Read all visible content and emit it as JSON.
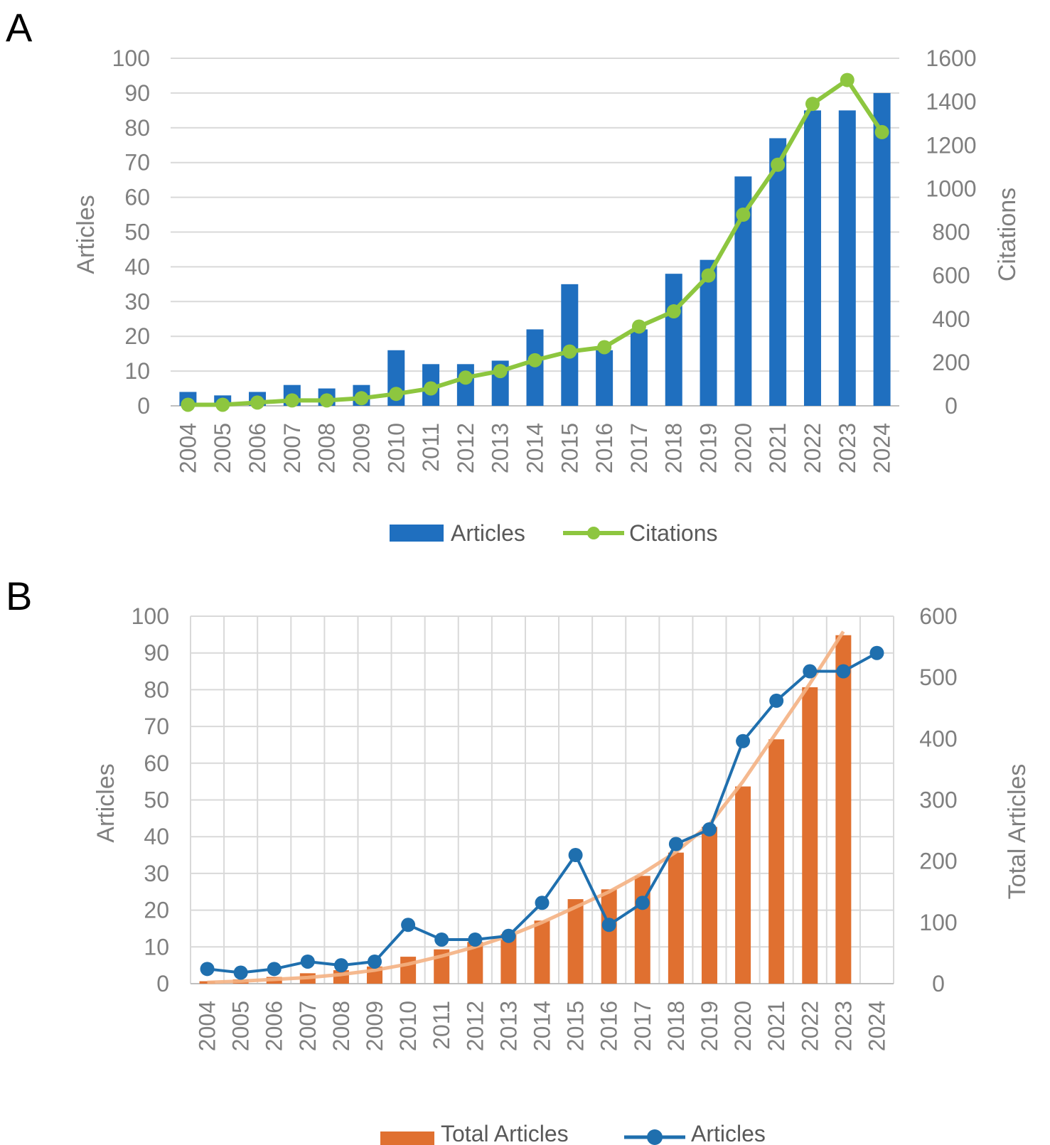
{
  "chart_data": [
    {
      "panel": "A",
      "type": "bar",
      "categories": [
        "2004",
        "2005",
        "2006",
        "2007",
        "2008",
        "2009",
        "2010",
        "2011",
        "2012",
        "2013",
        "2014",
        "2015",
        "2016",
        "2017",
        "2018",
        "2019",
        "2020",
        "2021",
        "2022",
        "2023",
        "2024"
      ],
      "series": [
        {
          "name": "Articles",
          "type": "bar",
          "axis": "left",
          "color": "#1f6fbf",
          "values": [
            4,
            3,
            4,
            6,
            5,
            6,
            16,
            12,
            12,
            13,
            22,
            35,
            16,
            22,
            38,
            42,
            66,
            77,
            85,
            85,
            90
          ]
        },
        {
          "name": "Citations",
          "type": "line",
          "axis": "right",
          "color": "#8dc63f",
          "values": [
            5,
            5,
            15,
            25,
            25,
            35,
            55,
            80,
            130,
            160,
            210,
            250,
            270,
            365,
            435,
            600,
            880,
            1110,
            1390,
            1500,
            1260
          ]
        }
      ],
      "ylabel": "Articles",
      "y2label": "Citations",
      "ylim": [
        0,
        100
      ],
      "y2lim": [
        0,
        1600
      ],
      "yticks": [
        "0",
        "10",
        "20",
        "30",
        "40",
        "50",
        "60",
        "70",
        "80",
        "90",
        "100"
      ],
      "y2ticks": [
        "0",
        "200",
        "400",
        "600",
        "800",
        "1000",
        "1200",
        "1400",
        "1600"
      ],
      "legend": [
        "Articles",
        "Citations"
      ],
      "grid": "horizontal"
    },
    {
      "panel": "B",
      "type": "bar",
      "categories": [
        "2004",
        "2005",
        "2006",
        "2007",
        "2008",
        "2009",
        "2010",
        "2011",
        "2012",
        "2013",
        "2014",
        "2015",
        "2016",
        "2017",
        "2018",
        "2019",
        "2020",
        "2021",
        "2022",
        "2023",
        "2024"
      ],
      "series": [
        {
          "name": "Total Articles",
          "type": "bar",
          "axis": "right",
          "color": "#e07030",
          "values": [
            4,
            7,
            11,
            17,
            22,
            28,
            44,
            56,
            68,
            81,
            103,
            138,
            154,
            176,
            214,
            256,
            322,
            399,
            484,
            569,
            null
          ]
        },
        {
          "name": "Articles",
          "type": "line",
          "axis": "left",
          "color": "#1f6fae",
          "values": [
            4,
            3,
            4,
            6,
            5,
            6,
            16,
            12,
            12,
            13,
            22,
            35,
            16,
            22,
            38,
            42,
            66,
            77,
            85,
            85,
            90
          ]
        },
        {
          "name": "Trendline",
          "type": "line",
          "axis": "right",
          "color": "#f4b183",
          "values": [
            2,
            4,
            7,
            10,
            15,
            22,
            32,
            45,
            60,
            78,
            100,
            125,
            150,
            180,
            215,
            260,
            330,
            410,
            490,
            575,
            null
          ]
        }
      ],
      "ylabel": "Articles",
      "y2label": "Total Articles",
      "ylim": [
        0,
        100
      ],
      "y2lim": [
        0,
        600
      ],
      "yticks": [
        "0",
        "10",
        "20",
        "30",
        "40",
        "50",
        "60",
        "70",
        "80",
        "90",
        "100"
      ],
      "y2ticks": [
        "0",
        "100",
        "200",
        "300",
        "400",
        "500",
        "600"
      ],
      "legend": [
        "Total Articles",
        "Articles"
      ],
      "grid": "both"
    }
  ]
}
